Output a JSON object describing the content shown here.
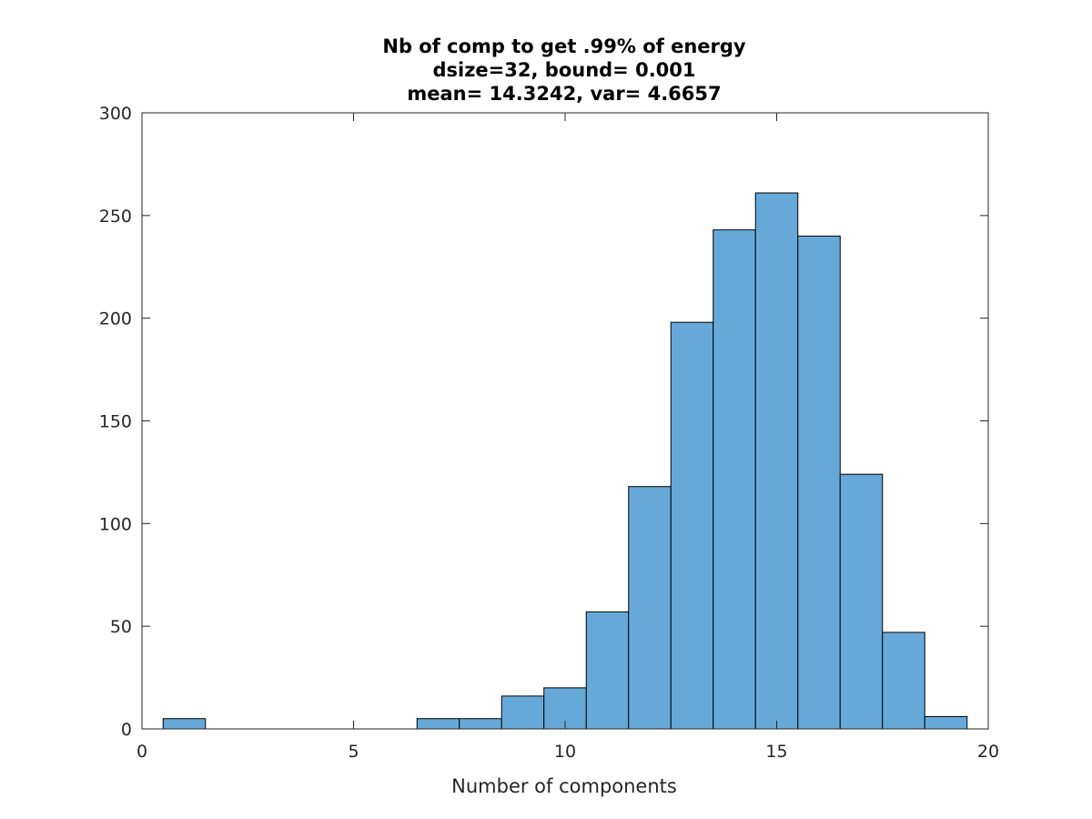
{
  "chart_data": {
    "type": "bar",
    "title_lines": [
      "Nb of comp to get .99% of energy",
      "dsize=32, bound= 0.001",
      "mean= 14.3242, var= 4.6657"
    ],
    "xlabel": "Number of components",
    "ylabel": "",
    "xlim": [
      0,
      20
    ],
    "ylim": [
      0,
      300
    ],
    "x_ticks": [
      0,
      5,
      10,
      15,
      20
    ],
    "y_ticks": [
      0,
      50,
      100,
      150,
      200,
      250,
      300
    ],
    "bin_width": 1,
    "bins": [
      {
        "x": 1,
        "value": 5
      },
      {
        "x": 2,
        "value": 0
      },
      {
        "x": 3,
        "value": 0
      },
      {
        "x": 4,
        "value": 0
      },
      {
        "x": 5,
        "value": 0
      },
      {
        "x": 6,
        "value": 0
      },
      {
        "x": 7,
        "value": 5
      },
      {
        "x": 8,
        "value": 5
      },
      {
        "x": 9,
        "value": 16
      },
      {
        "x": 10,
        "value": 20
      },
      {
        "x": 11,
        "value": 57
      },
      {
        "x": 12,
        "value": 118
      },
      {
        "x": 13,
        "value": 198
      },
      {
        "x": 14,
        "value": 243
      },
      {
        "x": 15,
        "value": 261
      },
      {
        "x": 16,
        "value": 240
      },
      {
        "x": 17,
        "value": 124
      },
      {
        "x": 18,
        "value": 47
      },
      {
        "x": 19,
        "value": 6
      }
    ],
    "grid": false,
    "bar_color": "#66a9d9",
    "edge_color": "#000000"
  }
}
